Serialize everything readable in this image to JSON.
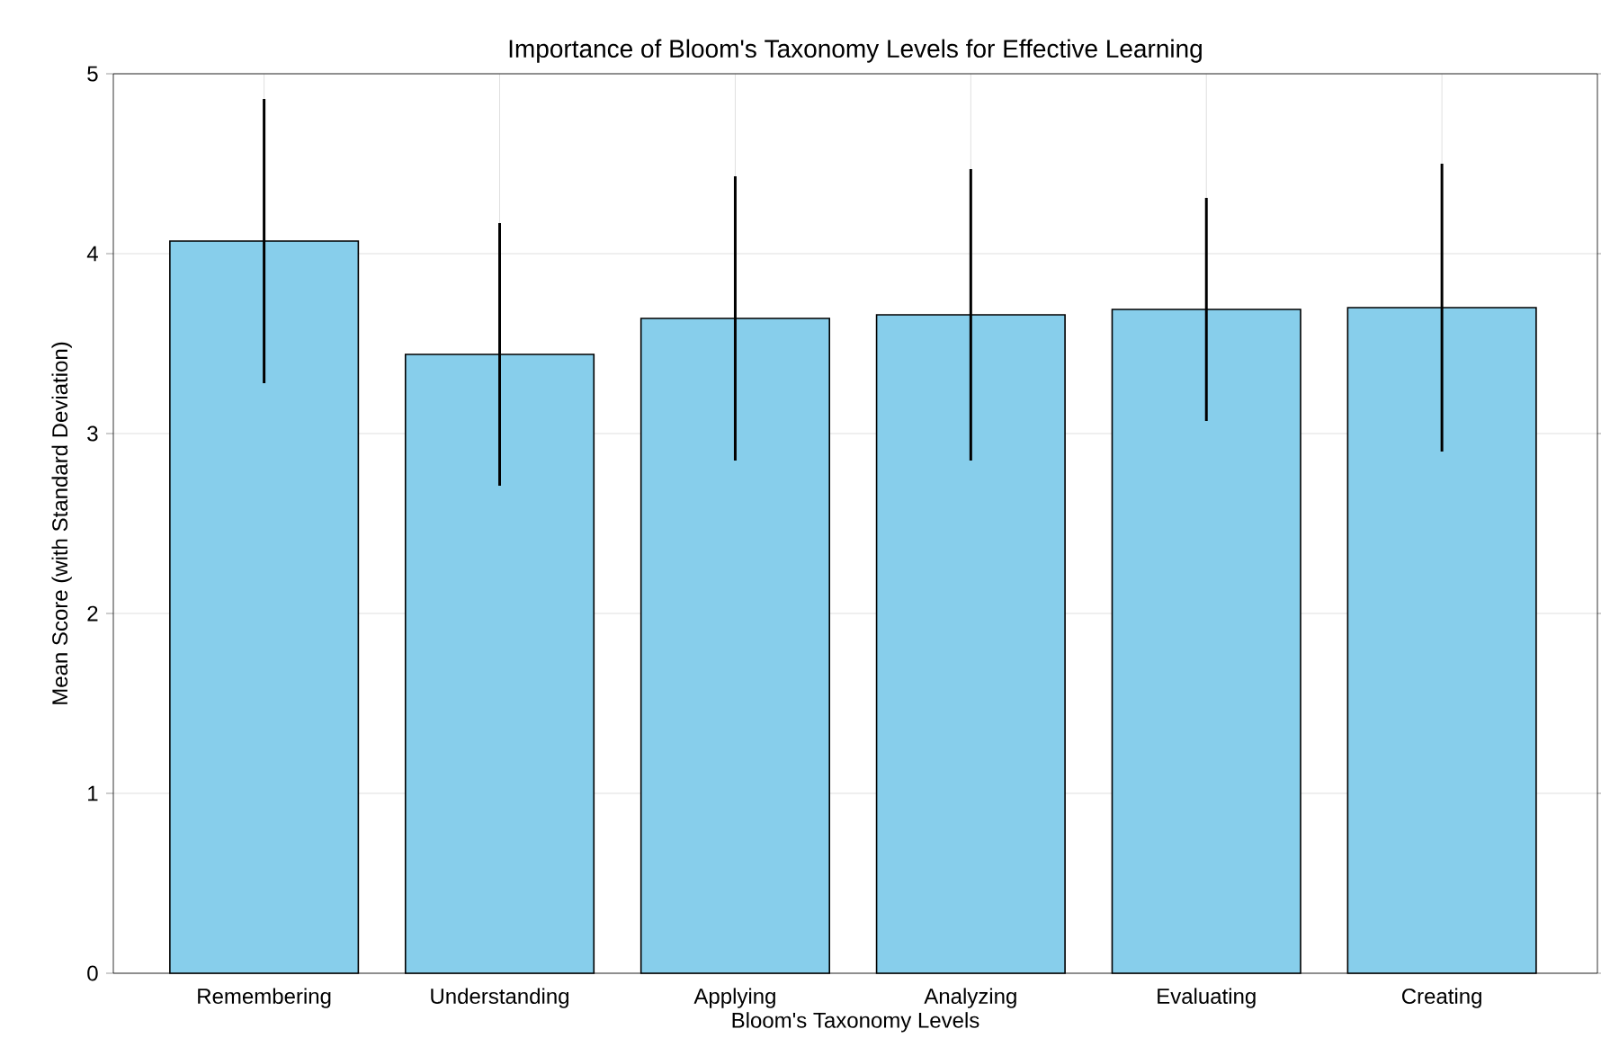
{
  "chart_data": {
    "type": "bar",
    "title": "Importance of Bloom's Taxonomy Levels for Effective Learning",
    "xlabel": "Bloom's Taxonomy Levels",
    "ylabel": "Mean Score (with Standard Deviation)",
    "categories": [
      "Remembering",
      "Understanding",
      "Applying",
      "Analyzing",
      "Evaluating",
      "Creating"
    ],
    "values": [
      4.07,
      3.44,
      3.64,
      3.66,
      3.69,
      3.7
    ],
    "errors": [
      0.79,
      0.73,
      0.79,
      0.81,
      0.62,
      0.8
    ],
    "color": "#87ceeb",
    "ylim": [
      0,
      5
    ],
    "yticks": [
      0,
      1,
      2,
      3,
      4,
      5
    ],
    "grid": true
  }
}
